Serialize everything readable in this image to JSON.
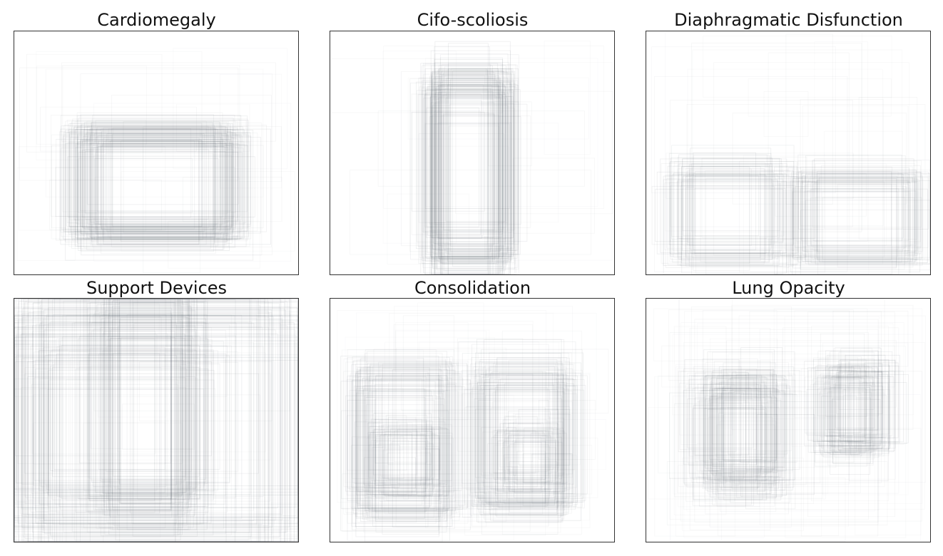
{
  "chart_data": [
    {
      "type": "box-overlay",
      "title": "Cardiomegaly",
      "grid": false,
      "clusters": [
        {
          "cx": 0.5,
          "cy": 0.63,
          "w": 0.5,
          "h": 0.4,
          "jitter": 0.045,
          "count": 150
        }
      ],
      "sparse_boxes": 25
    },
    {
      "type": "box-overlay",
      "title": "Cifo-scoliosis",
      "grid": false,
      "clusters": [
        {
          "cx": 0.49,
          "cy": 0.57,
          "w": 0.24,
          "h": 0.72,
          "jitter": 0.04,
          "count": 150
        }
      ],
      "sparse_boxes": 15
    },
    {
      "type": "box-overlay",
      "title": "Diaphragmatic Disfunction",
      "grid": false,
      "clusters": [
        {
          "cx": 0.3,
          "cy": 0.75,
          "w": 0.36,
          "h": 0.34,
          "jitter": 0.055,
          "count": 70
        },
        {
          "cx": 0.75,
          "cy": 0.77,
          "w": 0.38,
          "h": 0.32,
          "jitter": 0.05,
          "count": 75
        }
      ],
      "sparse_boxes": 25
    },
    {
      "type": "box-overlay",
      "title": "Support Devices",
      "grid": false,
      "clusters": [
        {
          "cx": 0.5,
          "cy": 0.52,
          "w": 0.92,
          "h": 0.9,
          "jitter": 0.05,
          "count": 100
        },
        {
          "cx": 0.46,
          "cy": 0.45,
          "w": 0.28,
          "h": 0.78,
          "jitter": 0.06,
          "count": 90
        },
        {
          "cx": 0.38,
          "cy": 0.52,
          "w": 0.56,
          "h": 0.6,
          "jitter": 0.09,
          "count": 70
        }
      ],
      "sparse_boxes": 20
    },
    {
      "type": "box-overlay",
      "title": "Consolidation",
      "grid": false,
      "clusters": [
        {
          "cx": 0.26,
          "cy": 0.6,
          "w": 0.3,
          "h": 0.54,
          "jitter": 0.05,
          "count": 90
        },
        {
          "cx": 0.26,
          "cy": 0.66,
          "w": 0.18,
          "h": 0.22,
          "jitter": 0.06,
          "count": 70
        },
        {
          "cx": 0.69,
          "cy": 0.58,
          "w": 0.28,
          "h": 0.52,
          "jitter": 0.05,
          "count": 90
        },
        {
          "cx": 0.7,
          "cy": 0.66,
          "w": 0.16,
          "h": 0.22,
          "jitter": 0.06,
          "count": 60
        }
      ],
      "sparse_boxes": 40
    },
    {
      "type": "box-overlay",
      "title": "Lung Opacity",
      "grid": false,
      "clusters": [
        {
          "cx": 0.33,
          "cy": 0.55,
          "w": 0.2,
          "h": 0.38,
          "jitter": 0.08,
          "count": 140
        },
        {
          "cx": 0.73,
          "cy": 0.45,
          "w": 0.16,
          "h": 0.3,
          "jitter": 0.07,
          "count": 110
        }
      ],
      "sparse_boxes": 60
    }
  ],
  "colors": {
    "box_stroke": "#3c4650",
    "frame": "#333333",
    "title": "#111111"
  }
}
